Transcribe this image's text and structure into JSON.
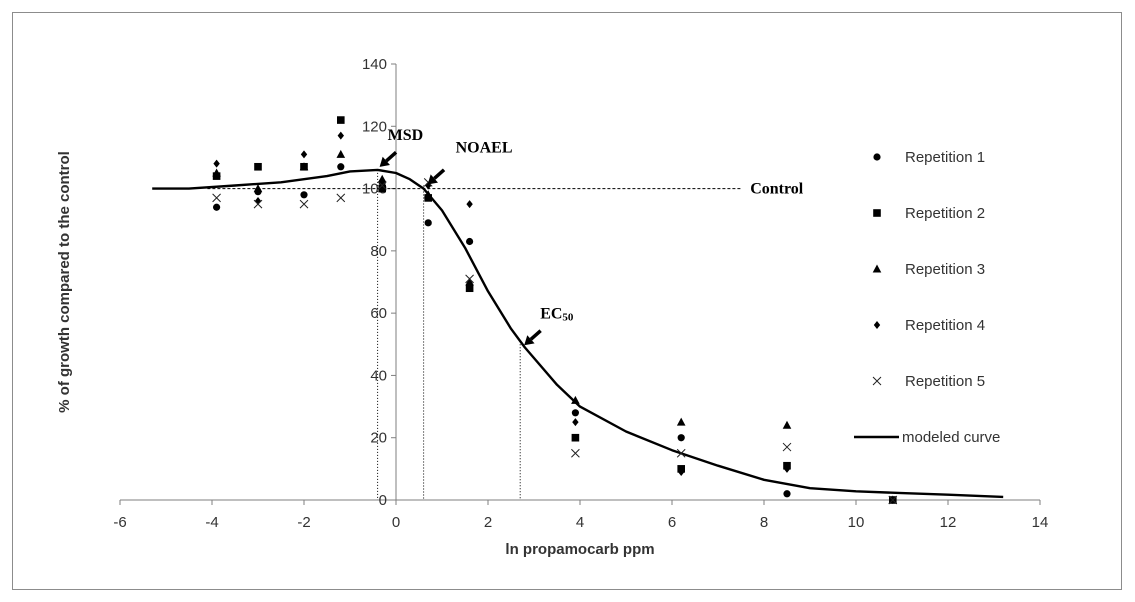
{
  "chart_data": {
    "type": "scatter",
    "title": "",
    "xlabel": "ln propamocarb  ppm",
    "ylabel": "% of growth compared to the control",
    "xlim": [
      -6,
      14
    ],
    "ylim": [
      0,
      140
    ],
    "xticks": [
      -6,
      -4,
      -2,
      0,
      2,
      4,
      6,
      8,
      10,
      12,
      14
    ],
    "yticks": [
      0,
      20,
      40,
      60,
      80,
      100,
      120,
      140
    ],
    "grid": false,
    "legend_position": "right",
    "control_level": 100,
    "control_label": "Control",
    "annotations": [
      {
        "label": "MSD",
        "x": -0.4,
        "y": 106
      },
      {
        "label": "NOAEL",
        "x": 0.6,
        "y": 101
      },
      {
        "label": "EC",
        "label_sub": "50",
        "x": 2.7,
        "y": 50
      }
    ],
    "series": [
      {
        "name": "Repetition 1",
        "marker": "circle",
        "x": [
          -3.9,
          -3.0,
          -2.0,
          -1.2,
          -0.3,
          0.7,
          1.6,
          3.9,
          6.2,
          8.5,
          10.8
        ],
        "y": [
          94,
          99,
          98,
          107,
          102,
          89,
          83,
          28,
          20,
          2,
          0
        ]
      },
      {
        "name": "Repetition 2",
        "marker": "square",
        "x": [
          -3.9,
          -3.0,
          -2.0,
          -1.2,
          -0.3,
          0.7,
          1.6,
          3.9,
          6.2,
          8.5,
          10.8
        ],
        "y": [
          104,
          107,
          107,
          122,
          100,
          97,
          68,
          20,
          10,
          11,
          0
        ]
      },
      {
        "name": "Repetition 3",
        "marker": "triangle",
        "x": [
          -3.9,
          -3.0,
          -2.0,
          -1.2,
          -0.3,
          0.7,
          1.6,
          3.9,
          6.2,
          8.5,
          10.8
        ],
        "y": [
          105,
          100,
          107,
          111,
          103,
          98,
          70,
          32,
          25,
          24,
          0
        ]
      },
      {
        "name": "Repetition 4",
        "marker": "diamond",
        "x": [
          -3.9,
          -3.0,
          -2.0,
          -1.2,
          -0.3,
          0.7,
          1.6,
          3.9,
          6.2,
          8.5,
          10.8
        ],
        "y": [
          108,
          96,
          111,
          117,
          102,
          101,
          95,
          25,
          9,
          10,
          0
        ]
      },
      {
        "name": "Repetition 5",
        "marker": "x",
        "x": [
          -3.9,
          -3.0,
          -2.0,
          -1.2,
          -0.3,
          0.7,
          1.6,
          3.9,
          6.2,
          8.5,
          10.8
        ],
        "y": [
          97,
          95,
          95,
          97,
          101,
          102,
          71,
          15,
          15,
          17,
          0
        ]
      },
      {
        "name": "modeled curve",
        "marker": "line",
        "x": [
          -5.3,
          -4.5,
          -3.5,
          -2.5,
          -1.5,
          -1.0,
          -0.4,
          0.0,
          0.3,
          0.6,
          1.0,
          1.5,
          2.0,
          2.5,
          2.8,
          3.5,
          4.0,
          5.0,
          6.0,
          7.0,
          8.0,
          9.0,
          10.0,
          11.0,
          12.0,
          13.2
        ],
        "y": [
          100,
          100,
          101,
          102,
          104,
          105.5,
          106,
          105,
          103,
          100,
          93,
          81,
          67,
          55,
          49,
          37,
          30,
          22,
          16,
          11,
          6.5,
          3.8,
          2.8,
          2.2,
          1.7,
          1.0
        ]
      }
    ]
  }
}
